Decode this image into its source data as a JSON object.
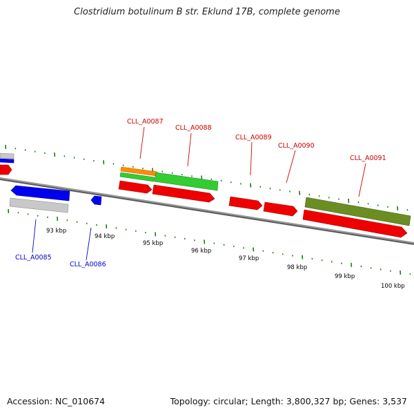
{
  "title": "Clostridium botulinum B str. Eklund 17B, complete genome",
  "footer": {
    "accession": "Accession: NC_010674",
    "summary": "Topology: circular; Length: 3,800,327 bp; Genes: 3,537"
  },
  "colors": {
    "backbone": "#7f7f7f",
    "tick": "#1a7a1a",
    "forward_gene": "#ee0000",
    "reverse_gene": "#0000ee",
    "gray_feature": "#c8c8c8",
    "orange_feature": "#ff8c00",
    "green_feature": "#33cc33",
    "olive_feature": "#6b8e23",
    "forward_label": "#cc0000",
    "reverse_label": "#0000cc"
  },
  "axis": {
    "kbp_labels": [
      "93 kbp",
      "94 kbp",
      "95 kbp",
      "96 kbp",
      "97 kbp",
      "98 kbp",
      "99 kbp",
      "100 kbp"
    ]
  },
  "gene_labels": {
    "forward": [
      "CLL_A0087",
      "CLL_A0088",
      "CLL_A0089",
      "CLL_A0090",
      "CLL_A0091"
    ],
    "reverse": [
      "CLL_A0085",
      "CLL_A0086"
    ]
  }
}
